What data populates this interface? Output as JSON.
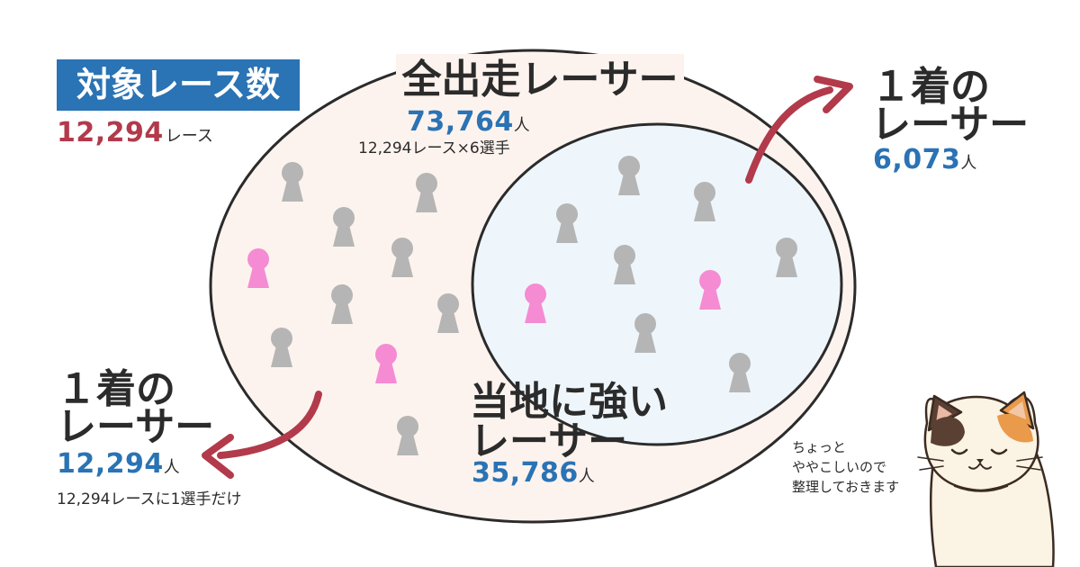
{
  "target_races": {
    "title": "対象レース数",
    "count": "12,294",
    "unit": "レース"
  },
  "all_racers": {
    "label": "全出走レーサー",
    "count": "73,764",
    "unit": "人",
    "note": "12,294レース×6選手"
  },
  "local_strong": {
    "label_line1": "当地に強い",
    "label_line2": "レーサー",
    "count": "35,786",
    "unit": "人"
  },
  "first_place_local": {
    "label_line1": "１着の",
    "label_line2": "レーサー",
    "count": "6,073",
    "unit": "人"
  },
  "first_place_all": {
    "label_line1": "１着の",
    "label_line2": "レーサー",
    "count": "12,294",
    "unit": "人",
    "note": "12,294レースに1選手だけ"
  },
  "cat": {
    "speech_line1": "ちょっと",
    "speech_line2": "ややこしいので",
    "speech_line3": "整理しておきます"
  },
  "colors": {
    "outer_fill": "#fdf3ee",
    "inner_fill": "#eef6fc",
    "person_gray": "#b5b5b5",
    "person_pink": "#f58bd2",
    "arrow": "#b23a4b",
    "accent_blue": "#2a73b4",
    "accent_red": "#b23a4b"
  }
}
